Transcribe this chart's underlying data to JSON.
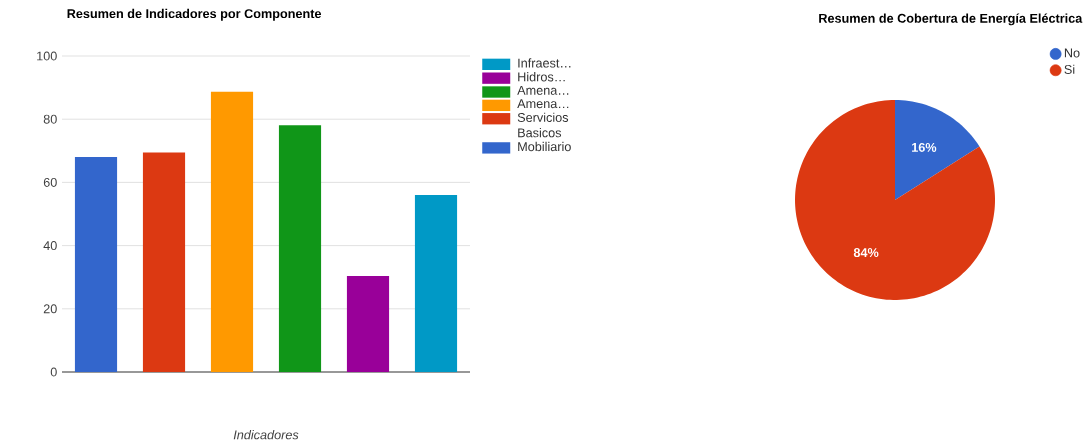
{
  "chart_data": [
    {
      "type": "bar",
      "title": "Resumen de Indicadores por Componente",
      "xlabel": "Indicadores",
      "categories": [
        null,
        null,
        null,
        null,
        null,
        null
      ],
      "stacked": true,
      "series": [
        {
          "name": "Mobiliario",
          "color": "#3366cc",
          "values": [
            68,
            null,
            null,
            null,
            null,
            null
          ]
        },
        {
          "name": "Servicios Basicos",
          "color": "#dc3912",
          "values": [
            null,
            69.5,
            null,
            null,
            null,
            null
          ]
        },
        {
          "name": "Amena…",
          "color": "#ff9900",
          "values": [
            null,
            null,
            88.7,
            null,
            null,
            null
          ]
        },
        {
          "name": "Amena…",
          "color": "#109618",
          "values": [
            null,
            null,
            null,
            78.1,
            null,
            null
          ]
        },
        {
          "name": "Hidros…",
          "color": "#990099",
          "values": [
            null,
            null,
            null,
            null,
            30.4,
            null
          ]
        },
        {
          "name": "Infraest…",
          "color": "#0099c6",
          "values": [
            null,
            null,
            null,
            null,
            null,
            56
          ]
        }
      ],
      "ylim": [
        0,
        100
      ],
      "yticks": [
        0,
        20,
        40,
        60,
        80,
        100
      ],
      "grid": "y",
      "legend": "right"
    },
    {
      "type": "pie",
      "title": "Resumen de Cobertura de Energía Eléctrica",
      "categories": [
        "No",
        "Si"
      ],
      "values": [
        16,
        84
      ],
      "colors": [
        "#3366cc",
        "#dc3912"
      ],
      "value_labels": [
        "16%",
        "84%"
      ],
      "legend": "top right"
    }
  ]
}
